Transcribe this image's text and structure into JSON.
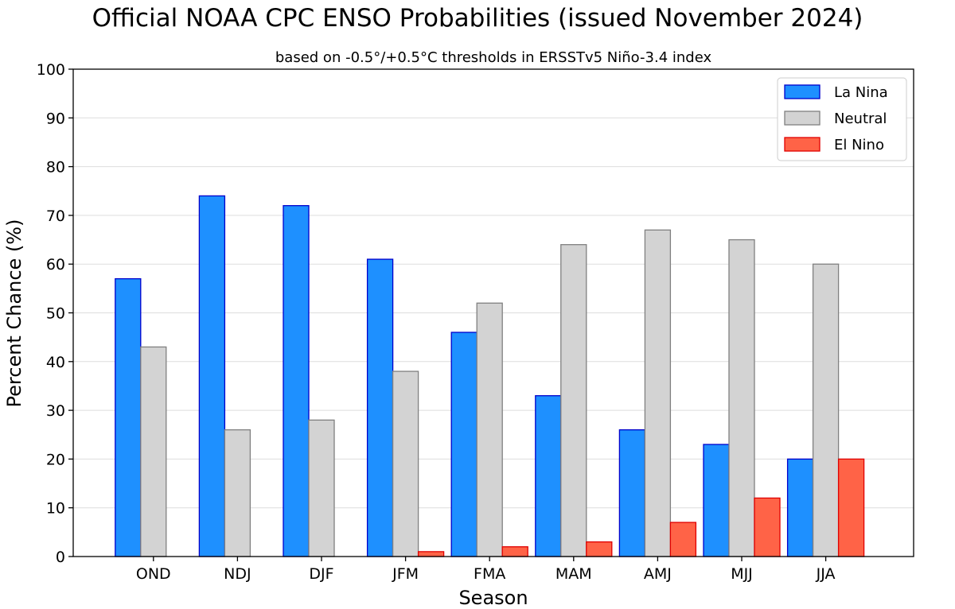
{
  "chart_data": {
    "type": "bar",
    "title": "Official NOAA CPC ENSO Probabilities (issued November 2024)",
    "subtitle": "based on -0.5°/+0.5°C thresholds in ERSSTv5 Niño-3.4 index",
    "xlabel": "Season",
    "ylabel": "Percent Chance (%)",
    "ylim": [
      0,
      100
    ],
    "yticks": [
      "0",
      "10",
      "20",
      "30",
      "40",
      "50",
      "60",
      "70",
      "80",
      "90",
      "100"
    ],
    "grid": "horizontal",
    "legend_position": "top-right",
    "categories": [
      "OND",
      "NDJ",
      "DJF",
      "JFM",
      "FMA",
      "MAM",
      "AMJ",
      "MJJ",
      "JJA"
    ],
    "series": [
      {
        "name": "La Nina",
        "color": "#1e90ff",
        "edge": "#0000cc",
        "values": [
          57,
          74,
          72,
          61,
          46,
          33,
          26,
          23,
          20
        ]
      },
      {
        "name": "Neutral",
        "color": "#d3d3d3",
        "edge": "#808080",
        "values": [
          43,
          26,
          28,
          38,
          52,
          64,
          67,
          65,
          60
        ]
      },
      {
        "name": "El Nino",
        "color": "#ff6347",
        "edge": "#e00000",
        "values": [
          0,
          0,
          0,
          1,
          2,
          3,
          7,
          12,
          20
        ]
      }
    ]
  }
}
